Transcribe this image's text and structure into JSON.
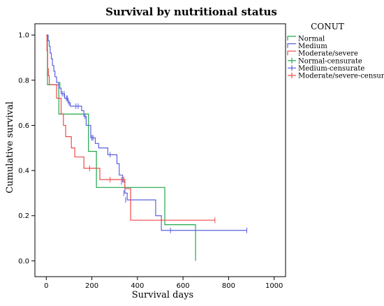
{
  "chart_data": {
    "type": "line",
    "title": "Survival by nutritional status",
    "xlabel": "Survival days",
    "ylabel": "Cumulative survival",
    "xlim": [
      -50,
      1050
    ],
    "ylim": [
      -0.07,
      1.05
    ],
    "xticks": [
      0,
      200,
      400,
      600,
      800,
      1000
    ],
    "yticks": [
      0.0,
      0.2,
      0.4,
      0.6,
      0.8,
      1.0
    ],
    "xtick_labels": [
      "0",
      "200",
      "400",
      "600",
      "800",
      "1000"
    ],
    "ytick_labels": [
      "0.0",
      "0.2",
      "0.4",
      "0.6",
      "0.8",
      "1.0"
    ],
    "grid": false,
    "legend": {
      "title": "CONUT",
      "placement": "top-right outside",
      "entries": [
        {
          "label": "Normal",
          "color": "#1fa84a",
          "kind": "line"
        },
        {
          "label": "Medium",
          "color": "#5a62e0",
          "kind": "line"
        },
        {
          "label": "Moderate/severe",
          "color": "#ee4a4a",
          "kind": "line"
        },
        {
          "label": "Normal-censurate",
          "color": "#1fa84a",
          "kind": "censor"
        },
        {
          "label": "Medium-censurate",
          "color": "#5a62e0",
          "kind": "censor"
        },
        {
          "label": "Moderate/severe-censurate",
          "color": "#ee4a4a",
          "kind": "censor"
        }
      ]
    },
    "series": [
      {
        "name": "Normal",
        "color": "#1fa84a",
        "steps": [
          [
            0,
            1.0
          ],
          [
            5,
            0.78
          ],
          [
            55,
            0.65
          ],
          [
            185,
            0.485
          ],
          [
            220,
            0.325
          ],
          [
            520,
            0.16
          ],
          [
            655,
            0.0
          ]
        ],
        "end_x": 655,
        "censored": [
          [
            60,
            0.78
          ]
        ]
      },
      {
        "name": "Medium",
        "color": "#5a62e0",
        "steps": [
          [
            0,
            1.0
          ],
          [
            8,
            0.975
          ],
          [
            13,
            0.95
          ],
          [
            17,
            0.92
          ],
          [
            22,
            0.895
          ],
          [
            27,
            0.865
          ],
          [
            33,
            0.84
          ],
          [
            38,
            0.815
          ],
          [
            45,
            0.79
          ],
          [
            55,
            0.765
          ],
          [
            65,
            0.74
          ],
          [
            80,
            0.72
          ],
          [
            95,
            0.7
          ],
          [
            105,
            0.685
          ],
          [
            155,
            0.665
          ],
          [
            165,
            0.64
          ],
          [
            175,
            0.6
          ],
          [
            195,
            0.545
          ],
          [
            215,
            0.52
          ],
          [
            230,
            0.5
          ],
          [
            270,
            0.47
          ],
          [
            310,
            0.43
          ],
          [
            320,
            0.38
          ],
          [
            335,
            0.35
          ],
          [
            345,
            0.3
          ],
          [
            355,
            0.27
          ],
          [
            480,
            0.2
          ],
          [
            505,
            0.135
          ]
        ],
        "end_x": 880,
        "censored": [
          [
            70,
            0.74
          ],
          [
            78,
            0.74
          ],
          [
            88,
            0.72
          ],
          [
            92,
            0.72
          ],
          [
            100,
            0.7
          ],
          [
            130,
            0.685
          ],
          [
            140,
            0.685
          ],
          [
            170,
            0.64
          ],
          [
            200,
            0.545
          ],
          [
            205,
            0.545
          ],
          [
            280,
            0.47
          ],
          [
            330,
            0.35
          ],
          [
            340,
            0.3
          ],
          [
            348,
            0.27
          ],
          [
            545,
            0.135
          ],
          [
            880,
            0.135
          ]
        ]
      },
      {
        "name": "Moderate/severe",
        "color": "#ee4a4a",
        "steps": [
          [
            0,
            1.0
          ],
          [
            3,
            0.93
          ],
          [
            6,
            0.85
          ],
          [
            9,
            0.82
          ],
          [
            13,
            0.78
          ],
          [
            45,
            0.72
          ],
          [
            65,
            0.65
          ],
          [
            75,
            0.6
          ],
          [
            85,
            0.55
          ],
          [
            110,
            0.5
          ],
          [
            125,
            0.46
          ],
          [
            165,
            0.41
          ],
          [
            235,
            0.36
          ],
          [
            345,
            0.32
          ],
          [
            370,
            0.18
          ]
        ],
        "end_x": 740,
        "censored": [
          [
            190,
            0.41
          ],
          [
            280,
            0.36
          ],
          [
            330,
            0.36
          ],
          [
            340,
            0.36
          ],
          [
            505,
            0.18
          ],
          [
            740,
            0.18
          ]
        ]
      }
    ]
  }
}
